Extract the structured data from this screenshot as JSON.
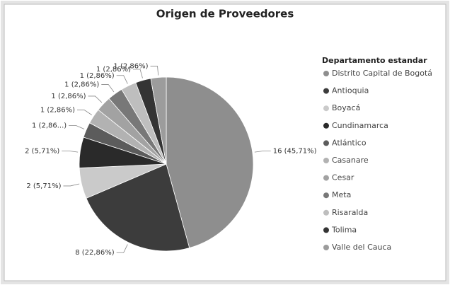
{
  "chart_data": {
    "type": "pie",
    "title": "Origen de Proveedores",
    "legend_title": "Departamento estandar",
    "legend": "right",
    "categories": [
      "Distrito Capital de Bogotá",
      "Antioquia",
      "Boyacá",
      "Cundinamarca",
      "Atlántico",
      "Casanare",
      "Cesar",
      "Meta",
      "Risaralda",
      "Tolima",
      "Valle del Cauca"
    ],
    "values": [
      16,
      8,
      2,
      2,
      1,
      1,
      1,
      1,
      1,
      1,
      1
    ],
    "value_labels": [
      "16 (45,71%)",
      "8 (22,86%)",
      "2 (5,71%)",
      "2 (5,71%)",
      "1 (2,86...)",
      "1 (2,86%)",
      "1 (2,86%)",
      "1 (2,86%)",
      "1 (2,86%)",
      "1 (2,86%)",
      "1 (2,86%)"
    ],
    "colors": [
      "#8e8e8e",
      "#3c3c3c",
      "#cacaca",
      "#2a2a2a",
      "#5c5c5c",
      "#b2b2b2",
      "#a2a2a2",
      "#787878",
      "#bebebe",
      "#343434",
      "#9c9c9c"
    ]
  }
}
